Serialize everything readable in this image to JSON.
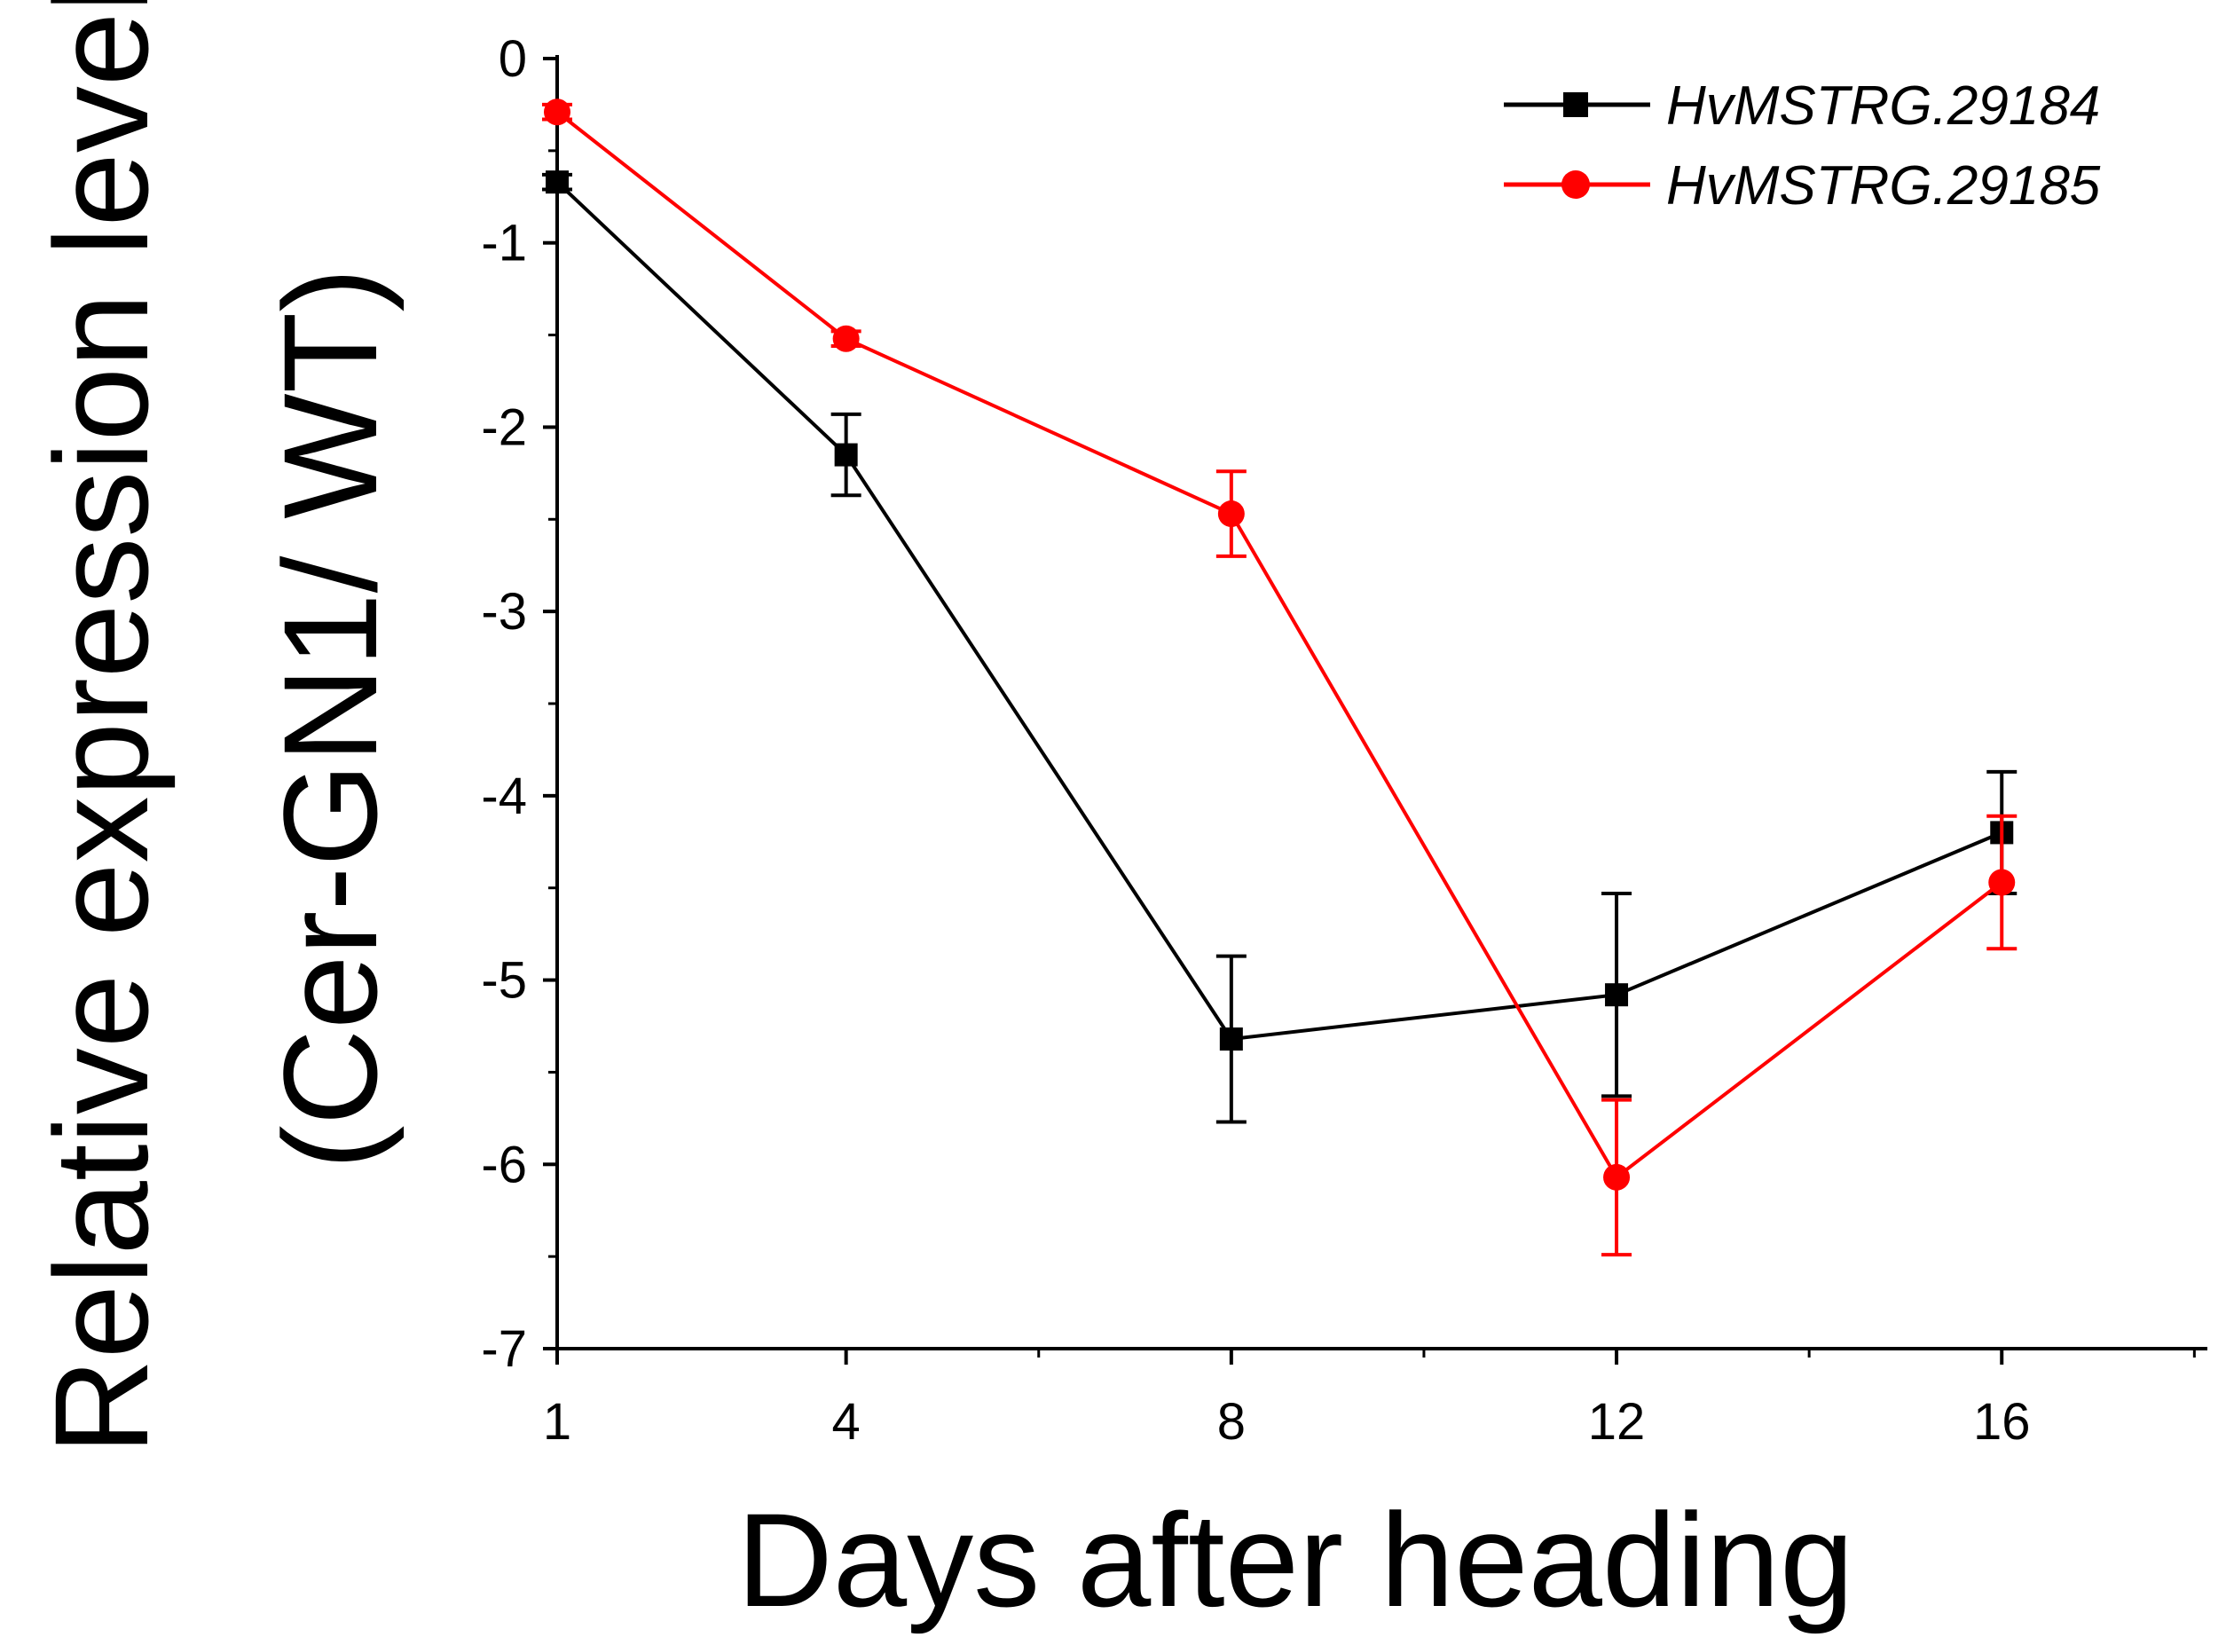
{
  "chart_data": {
    "type": "line",
    "title": "",
    "xlabel": "Days after heading",
    "ylabel_line1": "Relative expression level",
    "ylabel_line2": "(Cer-GN1/ WT)",
    "x": [
      1,
      4,
      8,
      12,
      16
    ],
    "xticks": [
      1,
      4,
      8,
      12,
      16
    ],
    "yticks": [
      0,
      -1,
      -2,
      -3,
      -4,
      -5,
      -6,
      -7
    ],
    "xlim": [
      1,
      18
    ],
    "ylim": [
      -7,
      0
    ],
    "legend_position": "top-right",
    "series": [
      {
        "name": "HvMSTRG.29184",
        "color": "#000000",
        "marker": "square",
        "values": [
          -0.67,
          -2.15,
          -5.32,
          -5.08,
          -4.2
        ],
        "errors": [
          0.04,
          0.22,
          0.45,
          0.55,
          0.33
        ]
      },
      {
        "name": "HvMSTRG.29185",
        "color": "#ff0000",
        "marker": "circle",
        "values": [
          -0.29,
          -1.52,
          -2.47,
          -6.07,
          -4.47
        ],
        "errors": [
          0.04,
          0.04,
          0.23,
          0.42,
          0.36
        ]
      }
    ]
  }
}
